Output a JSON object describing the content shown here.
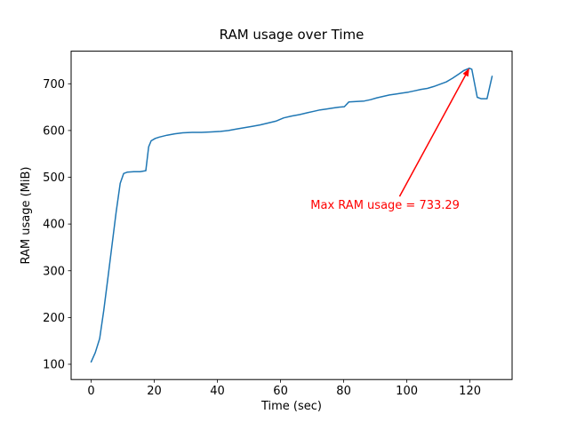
{
  "chart_data": {
    "type": "line",
    "title": "RAM usage over Time",
    "xlabel": "Time (sec)",
    "ylabel": "RAM usage (MiB)",
    "x_ticks": [
      0,
      20,
      40,
      60,
      80,
      100,
      120
    ],
    "y_ticks": [
      100,
      200,
      300,
      400,
      500,
      600,
      700
    ],
    "xlim": [
      -6.35,
      133.35
    ],
    "ylim": [
      67.3,
      769.7
    ],
    "grid": false,
    "legend": "none",
    "frame_color": "#000000",
    "background_color": "#ffffff",
    "series": [
      {
        "name": "RAM usage (MiB)",
        "color": "#1f77b4",
        "points": [
          [
            0,
            105
          ],
          [
            1.3,
            125
          ],
          [
            2.7,
            155
          ],
          [
            4,
            215
          ],
          [
            5.3,
            285
          ],
          [
            6.6,
            355
          ],
          [
            7.9,
            425
          ],
          [
            9.2,
            487
          ],
          [
            10.3,
            508
          ],
          [
            11.5,
            511
          ],
          [
            13.5,
            512
          ],
          [
            15.5,
            512
          ],
          [
            17.3,
            514
          ],
          [
            18.2,
            565
          ],
          [
            19,
            578
          ],
          [
            20.3,
            583
          ],
          [
            21.6,
            586
          ],
          [
            24,
            590
          ],
          [
            26.5,
            593
          ],
          [
            29,
            595
          ],
          [
            32,
            596
          ],
          [
            35,
            596
          ],
          [
            38,
            597
          ],
          [
            41,
            598
          ],
          [
            43.5,
            600
          ],
          [
            46,
            603
          ],
          [
            48.5,
            606
          ],
          [
            51,
            609
          ],
          [
            53.5,
            612
          ],
          [
            56,
            616
          ],
          [
            58.5,
            620
          ],
          [
            61,
            627
          ],
          [
            63.5,
            631
          ],
          [
            66,
            634
          ],
          [
            68.5,
            638
          ],
          [
            70.5,
            641
          ],
          [
            72.5,
            644
          ],
          [
            74.5,
            646
          ],
          [
            76.5,
            648
          ],
          [
            78.5,
            650
          ],
          [
            80.2,
            651
          ],
          [
            81.6,
            661
          ],
          [
            84,
            662
          ],
          [
            86.5,
            663
          ],
          [
            88.5,
            666
          ],
          [
            90.5,
            670
          ],
          [
            92.5,
            673
          ],
          [
            94.5,
            676
          ],
          [
            96.5,
            678
          ],
          [
            98.5,
            680
          ],
          [
            100.5,
            682
          ],
          [
            102.5,
            685
          ],
          [
            104.5,
            688
          ],
          [
            106.5,
            690
          ],
          [
            108.5,
            694
          ],
          [
            110.5,
            699
          ],
          [
            112.5,
            704
          ],
          [
            114.5,
            712
          ],
          [
            116.5,
            721
          ],
          [
            118,
            728
          ],
          [
            119.8,
            733.29
          ],
          [
            120.6,
            731
          ],
          [
            122.3,
            671
          ],
          [
            123.5,
            668
          ],
          [
            125.4,
            668
          ],
          [
            127,
            716
          ]
        ]
      }
    ],
    "annotation": {
      "label": "Max RAM usage = 733.29",
      "color": "#ff0000",
      "target": [
        119.8,
        733.29
      ],
      "arrow_tail": [
        97.7,
        459
      ],
      "text_pos": [
        69.5,
        433
      ]
    }
  }
}
